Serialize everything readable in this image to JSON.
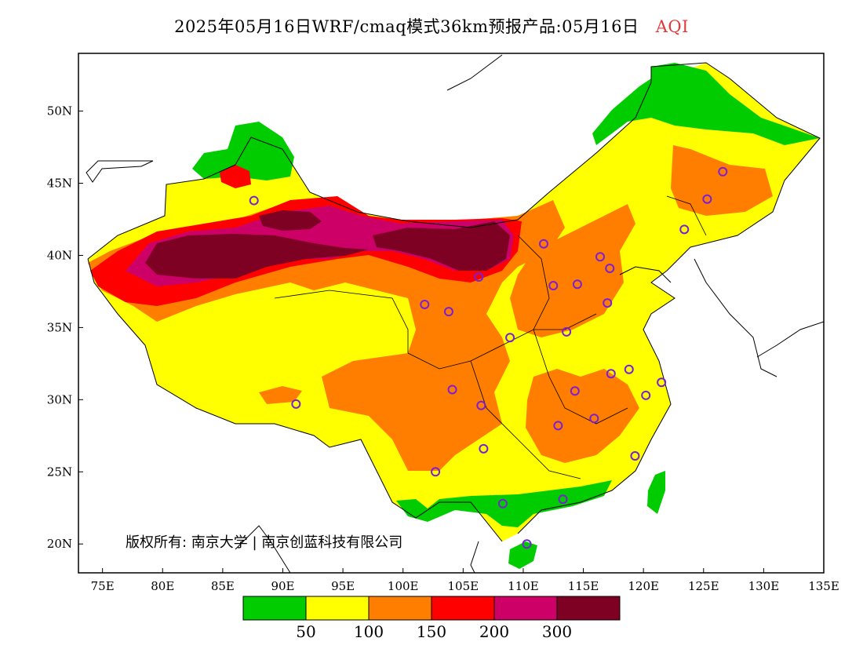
{
  "header": {
    "title": "2025年05月16日WRF/cmaq模式36km预报产品:05月16日",
    "variable": "AQI"
  },
  "map": {
    "lon_range": [
      73,
      135
    ],
    "lat_range": [
      18,
      54
    ],
    "x_ticks": [
      "75E",
      "80E",
      "85E",
      "90E",
      "95E",
      "100E",
      "105E",
      "110E",
      "115E",
      "120E",
      "125E",
      "130E",
      "135E"
    ],
    "y_ticks": [
      "20N",
      "25N",
      "30N",
      "35N",
      "40N",
      "45N",
      "50N"
    ],
    "copyright": "版权所有: 南京大学 | 南京创蓝科技有限公司"
  },
  "legend": {
    "colors": [
      "#00cc00",
      "#ffff00",
      "#ff7e00",
      "#ff0000",
      "#cc0066",
      "#7e0023"
    ],
    "labels": [
      "50",
      "100",
      "150",
      "200",
      "300"
    ]
  },
  "stations": [
    {
      "lon": 87.6,
      "lat": 43.8
    },
    {
      "lon": 91.1,
      "lat": 29.7
    },
    {
      "lon": 101.8,
      "lat": 36.6
    },
    {
      "lon": 103.8,
      "lat": 36.1
    },
    {
      "lon": 106.3,
      "lat": 38.5
    },
    {
      "lon": 111.7,
      "lat": 40.8
    },
    {
      "lon": 112.5,
      "lat": 37.9
    },
    {
      "lon": 114.5,
      "lat": 38.0
    },
    {
      "lon": 116.4,
      "lat": 39.9
    },
    {
      "lon": 117.2,
      "lat": 39.1
    },
    {
      "lon": 117.0,
      "lat": 36.7
    },
    {
      "lon": 113.6,
      "lat": 34.7
    },
    {
      "lon": 108.9,
      "lat": 34.3
    },
    {
      "lon": 104.1,
      "lat": 30.7
    },
    {
      "lon": 106.5,
      "lat": 29.6
    },
    {
      "lon": 106.7,
      "lat": 26.6
    },
    {
      "lon": 102.7,
      "lat": 25.0
    },
    {
      "lon": 108.3,
      "lat": 22.8
    },
    {
      "lon": 113.3,
      "lat": 23.1
    },
    {
      "lon": 110.3,
      "lat": 20.0
    },
    {
      "lon": 112.9,
      "lat": 28.2
    },
    {
      "lon": 114.3,
      "lat": 30.6
    },
    {
      "lon": 115.9,
      "lat": 28.7
    },
    {
      "lon": 117.3,
      "lat": 31.8
    },
    {
      "lon": 118.8,
      "lat": 32.1
    },
    {
      "lon": 120.2,
      "lat": 30.3
    },
    {
      "lon": 121.5,
      "lat": 31.2
    },
    {
      "lon": 119.3,
      "lat": 26.1
    },
    {
      "lon": 123.4,
      "lat": 41.8
    },
    {
      "lon": 125.3,
      "lat": 43.9
    },
    {
      "lon": 126.6,
      "lat": 45.8
    }
  ]
}
